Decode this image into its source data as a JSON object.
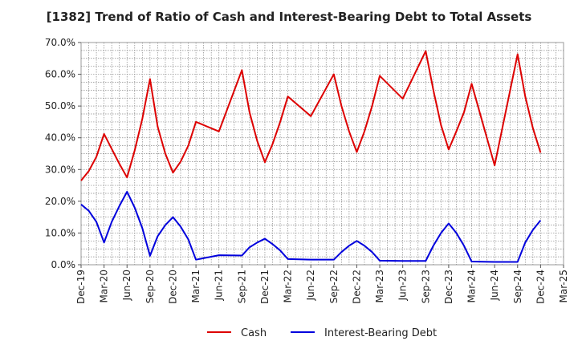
{
  "chart_data": {
    "type": "line",
    "title": "[1382]  Trend of Ratio of Cash and Interest-Bearing Debt to Total Assets",
    "xlabel": "",
    "ylabel": "",
    "ylim": [
      0,
      70
    ],
    "y_ticks": [
      "0.0%",
      "10.0%",
      "20.0%",
      "30.0%",
      "40.0%",
      "50.0%",
      "60.0%",
      "70.0%"
    ],
    "x_tick_labels": [
      "Dec-19",
      "Mar-20",
      "Jun-20",
      "Sep-20",
      "Dec-20",
      "Mar-21",
      "Jun-21",
      "Sep-21",
      "Dec-21",
      "Mar-22",
      "Jun-22",
      "Sep-22",
      "Dec-22",
      "Mar-23",
      "Jun-23",
      "Sep-23",
      "Dec-23",
      "Mar-24",
      "Jun-24",
      "Sep-24",
      "Dec-24",
      "Mar-25"
    ],
    "grid": true,
    "legend_position": "bottom-center",
    "series": [
      {
        "name": "Cash",
        "color": "#dd0000",
        "values": [
          26.5,
          29.5,
          34.0,
          41.2,
          36.5,
          31.8,
          27.5,
          36.0,
          46.0,
          58.5,
          43.5,
          35.0,
          29.0,
          32.5,
          37.5,
          45.0,
          null,
          null,
          42.0,
          null,
          null,
          61.3,
          48.0,
          39.0,
          32.3,
          38.0,
          45.0,
          53.0,
          null,
          null,
          46.8,
          null,
          null,
          60.0,
          50.0,
          42.0,
          35.5,
          42.0,
          50.0,
          59.5,
          null,
          null,
          52.3,
          null,
          null,
          67.3,
          55.0,
          44.0,
          36.3,
          42.0,
          48.0,
          57.0,
          null,
          null,
          31.3,
          null,
          null,
          66.3,
          53.0,
          43.0,
          35.3
        ]
      },
      {
        "name": "Interest-Bearing Debt",
        "color": "#0000dd",
        "values": [
          19.0,
          17.0,
          13.5,
          7.0,
          13.5,
          18.5,
          23.0,
          18.0,
          11.5,
          2.8,
          9.0,
          12.5,
          15.0,
          12.0,
          8.0,
          1.6,
          null,
          null,
          3.0,
          null,
          null,
          2.9,
          5.5,
          7.0,
          8.2,
          6.5,
          4.5,
          1.8,
          null,
          null,
          1.6,
          null,
          null,
          1.6,
          4.0,
          6.0,
          7.5,
          6.0,
          4.0,
          1.3,
          null,
          null,
          1.2,
          null,
          null,
          1.2,
          6.0,
          10.0,
          13.0,
          10.0,
          6.0,
          1.0,
          null,
          null,
          0.9,
          null,
          null,
          0.9,
          7.0,
          11.0,
          14.0
        ]
      }
    ]
  }
}
